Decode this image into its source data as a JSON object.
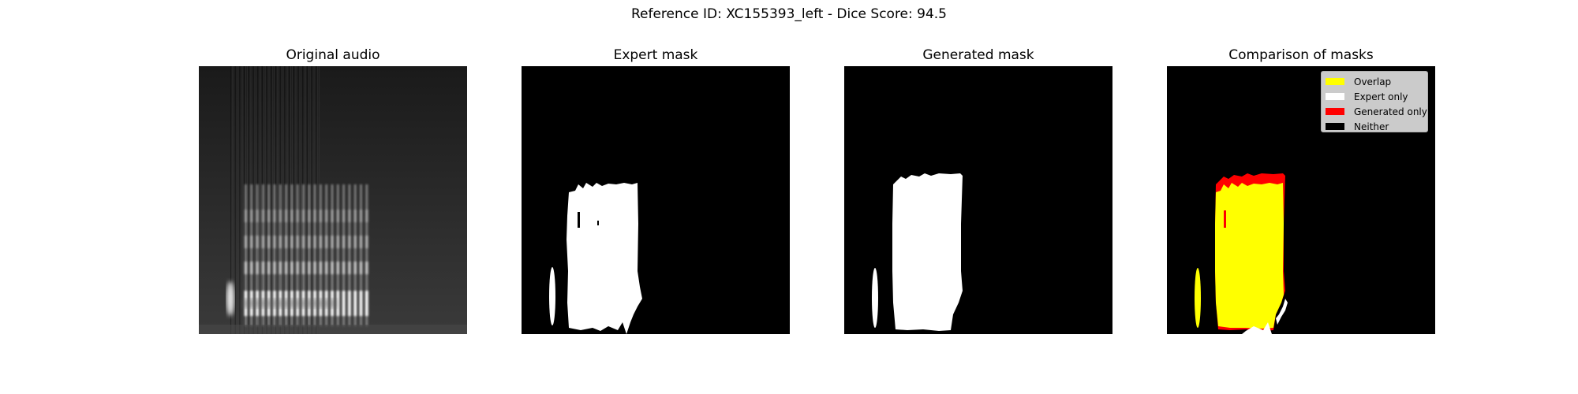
{
  "figure": {
    "title": "Reference ID: XC155393_left - Dice Score: 94.5"
  },
  "panels": [
    {
      "title": "Original audio"
    },
    {
      "title": "Expert mask"
    },
    {
      "title": "Generated mask"
    },
    {
      "title": "Comparison of masks"
    }
  ],
  "legend": {
    "items": [
      {
        "label": "Overlap",
        "color": "#ffff00"
      },
      {
        "label": "Expert only",
        "color": "#ffffff"
      },
      {
        "label": "Generated only",
        "color": "#ff0000"
      },
      {
        "label": "Neither",
        "color": "#000000"
      }
    ]
  }
}
